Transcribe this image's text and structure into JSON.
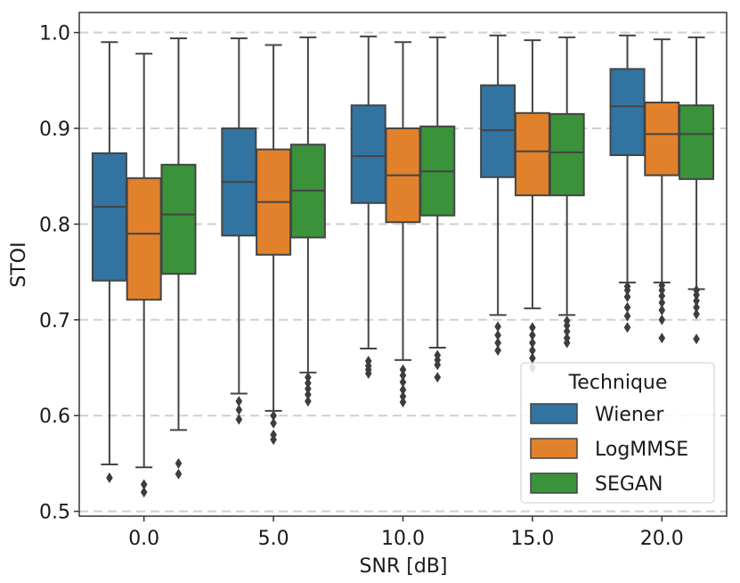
{
  "chart_data": {
    "type": "box",
    "title": "",
    "xlabel": "SNR [dB]",
    "ylabel": "STOI",
    "ylim": [
      0.495,
      1.021
    ],
    "yticks": [
      0.5,
      0.6,
      0.7,
      0.8,
      0.9,
      1.0
    ],
    "ytick_labels": [
      "0.5",
      "0.6",
      "0.7",
      "0.8",
      "0.9",
      "1.0"
    ],
    "categories": [
      "0.0",
      "5.0",
      "10.0",
      "15.0",
      "20.0"
    ],
    "grid": "horizontal dashed",
    "legend": {
      "title": "Technique",
      "placement": "lower-right"
    },
    "series": [
      {
        "name": "Wiener",
        "color": "#3274a1",
        "boxes": [
          {
            "whisker_low": 0.549,
            "q1": 0.741,
            "median": 0.818,
            "q3": 0.874,
            "whisker_high": 0.99,
            "outliers": [
              0.535
            ]
          },
          {
            "whisker_low": 0.623,
            "q1": 0.788,
            "median": 0.844,
            "q3": 0.9,
            "whisker_high": 0.994,
            "outliers": [
              0.596,
              0.606,
              0.615
            ]
          },
          {
            "whisker_low": 0.67,
            "q1": 0.822,
            "median": 0.871,
            "q3": 0.924,
            "whisker_high": 0.996,
            "outliers": [
              0.644,
              0.648,
              0.652,
              0.657
            ]
          },
          {
            "whisker_low": 0.705,
            "q1": 0.849,
            "median": 0.898,
            "q3": 0.945,
            "whisker_high": 0.997,
            "outliers": [
              0.668,
              0.676,
              0.684,
              0.693
            ]
          },
          {
            "whisker_low": 0.739,
            "q1": 0.872,
            "median": 0.923,
            "q3": 0.962,
            "whisker_high": 0.997,
            "outliers": [
              0.692,
              0.704,
              0.713,
              0.724,
              0.731,
              0.735
            ]
          }
        ]
      },
      {
        "name": "LogMMSE",
        "color": "#e1812c",
        "boxes": [
          {
            "whisker_low": 0.546,
            "q1": 0.721,
            "median": 0.79,
            "q3": 0.848,
            "whisker_high": 0.978,
            "outliers": [
              0.52,
              0.528
            ]
          },
          {
            "whisker_low": 0.605,
            "q1": 0.768,
            "median": 0.823,
            "q3": 0.878,
            "whisker_high": 0.987,
            "outliers": [
              0.575,
              0.58,
              0.592,
              0.6
            ]
          },
          {
            "whisker_low": 0.658,
            "q1": 0.802,
            "median": 0.851,
            "q3": 0.9,
            "whisker_high": 0.99,
            "outliers": [
              0.614,
              0.62,
              0.627,
              0.635,
              0.642,
              0.648
            ]
          },
          {
            "whisker_low": 0.712,
            "q1": 0.83,
            "median": 0.876,
            "q3": 0.916,
            "whisker_high": 0.992,
            "outliers": [
              0.65,
              0.66,
              0.668,
              0.676,
              0.684,
              0.692
            ]
          },
          {
            "whisker_low": 0.739,
            "q1": 0.851,
            "median": 0.894,
            "q3": 0.927,
            "whisker_high": 0.993,
            "outliers": [
              0.681,
              0.7,
              0.71,
              0.718,
              0.725,
              0.731,
              0.736
            ]
          }
        ]
      },
      {
        "name": "SEGAN",
        "color": "#3a923a",
        "boxes": [
          {
            "whisker_low": 0.585,
            "q1": 0.748,
            "median": 0.81,
            "q3": 0.862,
            "whisker_high": 0.994,
            "outliers": [
              0.539,
              0.55
            ]
          },
          {
            "whisker_low": 0.645,
            "q1": 0.786,
            "median": 0.835,
            "q3": 0.883,
            "whisker_high": 0.995,
            "outliers": [
              0.615,
              0.622,
              0.628,
              0.634,
              0.64
            ]
          },
          {
            "whisker_low": 0.671,
            "q1": 0.809,
            "median": 0.855,
            "q3": 0.902,
            "whisker_high": 0.995,
            "outliers": [
              0.64,
              0.653,
              0.658,
              0.663
            ]
          },
          {
            "whisker_low": 0.705,
            "q1": 0.83,
            "median": 0.875,
            "q3": 0.915,
            "whisker_high": 0.995,
            "outliers": [
              0.676,
              0.681,
              0.688,
              0.694,
              0.699
            ]
          },
          {
            "whisker_low": 0.732,
            "q1": 0.847,
            "median": 0.894,
            "q3": 0.924,
            "whisker_high": 0.995,
            "outliers": [
              0.68,
              0.706,
              0.713,
              0.72,
              0.726,
              0.731
            ]
          }
        ]
      }
    ]
  }
}
